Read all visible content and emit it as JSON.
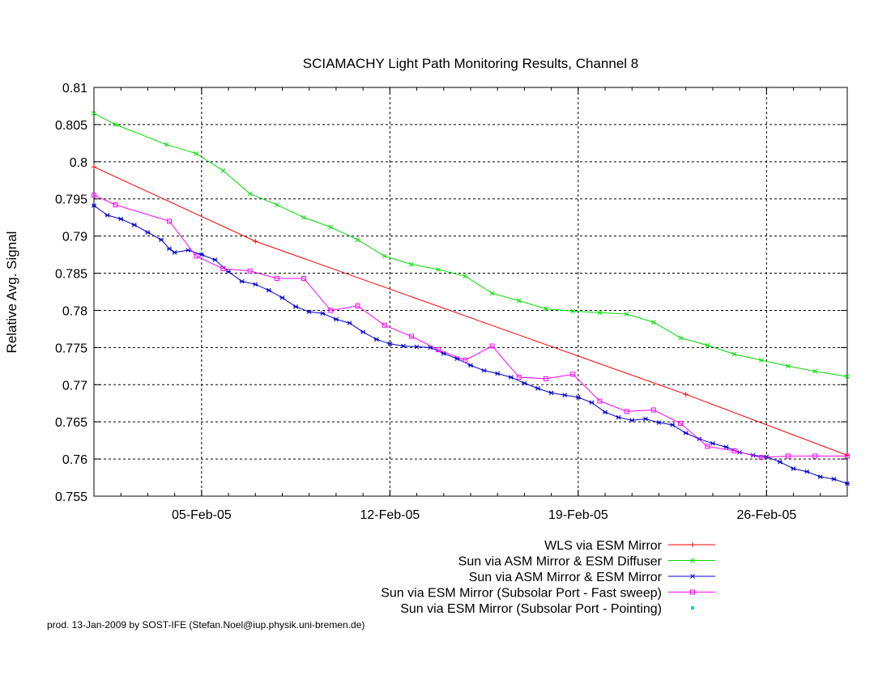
{
  "chart_data": {
    "type": "line",
    "title": "SCIAMACHY Light Path Monitoring Results, Channel 8",
    "xlabel": "",
    "ylabel": "Relative Avg. Signal",
    "x_type": "date",
    "xlim": [
      "2005-02-01",
      "2005-03-01"
    ],
    "ylim": [
      0.755,
      0.81
    ],
    "x_ticks": [
      {
        "value": "2005-02-05",
        "label": "05-Feb-05"
      },
      {
        "value": "2005-02-12",
        "label": "12-Feb-05"
      },
      {
        "value": "2005-02-19",
        "label": "19-Feb-05"
      },
      {
        "value": "2005-02-26",
        "label": "26-Feb-05"
      }
    ],
    "y_ticks": [
      0.755,
      0.76,
      0.765,
      0.77,
      0.775,
      0.78,
      0.785,
      0.79,
      0.795,
      0.8,
      0.805,
      0.81
    ],
    "y_tick_labels": [
      "0.755",
      "0.76",
      "0.765",
      "0.77",
      "0.775",
      "0.78",
      "0.785",
      "0.79",
      "0.795",
      "0.8",
      "0.805",
      "0.81"
    ],
    "grid": true,
    "legend_position": "below-right",
    "series": [
      {
        "name": "WLS via ESM Mirror",
        "color": "#ff0000",
        "marker": "plus",
        "x": [
          "2005-02-01",
          "2005-02-07",
          "2005-02-23",
          "2005-03-01"
        ],
        "y": [
          0.7993,
          0.7893,
          0.7687,
          0.7605
        ]
      },
      {
        "name": "Sun via ASM Mirror & ESM Diffuser",
        "color": "#00dd00",
        "marker": "x",
        "x": [
          "2005-02-01",
          "2005-02-01.8",
          "2005-02-03.7",
          "2005-02-04.8",
          "2005-02-05.8",
          "2005-02-06.8",
          "2005-02-07.8",
          "2005-02-08.8",
          "2005-02-09.8",
          "2005-02-10.8",
          "2005-02-11.8",
          "2005-02-12.8",
          "2005-02-13.8",
          "2005-02-14.8",
          "2005-02-15.8",
          "2005-02-16.8",
          "2005-02-17.8",
          "2005-02-18.8",
          "2005-02-19.8",
          "2005-02-20.8",
          "2005-02-21.8",
          "2005-02-22.8",
          "2005-02-23.8",
          "2005-02-24.8",
          "2005-02-25.8",
          "2005-02-26.8",
          "2005-02-27.8",
          "2005-03-01"
        ],
        "y": [
          0.8065,
          0.805,
          0.8023,
          0.8011,
          0.7988,
          0.7957,
          0.7942,
          0.7925,
          0.7912,
          0.7895,
          0.7873,
          0.7862,
          0.7855,
          0.7846,
          0.7823,
          0.7813,
          0.7802,
          0.7799,
          0.7797,
          0.7795,
          0.7784,
          0.7763,
          0.7753,
          0.7741,
          0.7733,
          0.7725,
          0.7718,
          0.7711
        ]
      },
      {
        "name": "Sun via ASM Mirror & ESM Mirror",
        "color": "#0000cc",
        "marker": "star",
        "x": [
          "2005-02-01",
          "2005-02-01.5",
          "2005-02-02",
          "2005-02-02.5",
          "2005-02-03",
          "2005-02-03.5",
          "2005-02-03.8",
          "2005-02-04",
          "2005-02-04.5",
          "2005-02-05",
          "2005-02-05.5",
          "2005-02-06",
          "2005-02-06.5",
          "2005-02-07",
          "2005-02-07.5",
          "2005-02-08",
          "2005-02-08.5",
          "2005-02-09",
          "2005-02-09.5",
          "2005-02-10",
          "2005-02-10.5",
          "2005-02-11",
          "2005-02-11.5",
          "2005-02-12",
          "2005-02-12.5",
          "2005-02-13",
          "2005-02-13.5",
          "2005-02-14",
          "2005-02-14.5",
          "2005-02-15",
          "2005-02-15.5",
          "2005-02-16",
          "2005-02-16.5",
          "2005-02-17",
          "2005-02-17.5",
          "2005-02-18",
          "2005-02-18.5",
          "2005-02-19",
          "2005-02-19.5",
          "2005-02-20",
          "2005-02-20.5",
          "2005-02-21",
          "2005-02-21.5",
          "2005-02-22",
          "2005-02-22.5",
          "2005-02-23",
          "2005-02-23.5",
          "2005-02-24",
          "2005-02-24.5",
          "2005-02-25",
          "2005-02-25.5",
          "2005-02-26",
          "2005-02-26.5",
          "2005-02-27",
          "2005-02-27.5",
          "2005-02-28",
          "2005-02-28.5",
          "2005-03-01"
        ],
        "y": [
          0.7941,
          0.7928,
          0.7923,
          0.7915,
          0.7905,
          0.7895,
          0.7883,
          0.7878,
          0.7881,
          0.7875,
          0.7868,
          0.7852,
          0.7839,
          0.7835,
          0.7827,
          0.7817,
          0.7805,
          0.7798,
          0.7796,
          0.7788,
          0.7783,
          0.7771,
          0.7761,
          0.7755,
          0.7752,
          0.7751,
          0.775,
          0.7742,
          0.7735,
          0.7726,
          0.7719,
          0.7715,
          0.771,
          0.7702,
          0.7695,
          0.7689,
          0.7686,
          0.7683,
          0.7676,
          0.7663,
          0.7656,
          0.7652,
          0.7654,
          0.7649,
          0.7646,
          0.7635,
          0.7627,
          0.7621,
          0.7616,
          0.7609,
          0.7605,
          0.7603,
          0.7596,
          0.7587,
          0.7583,
          0.7576,
          0.7573,
          0.7567
        ]
      },
      {
        "name": "Sun via ESM Mirror (Subsolar Port - Fast sweep)",
        "color": "#ff00ff",
        "marker": "square",
        "x": [
          "2005-02-01",
          "2005-02-01.8",
          "2005-02-03.8",
          "2005-02-04.8",
          "2005-02-05.8",
          "2005-02-06.8",
          "2005-02-07.8",
          "2005-02-08.8",
          "2005-02-09.8",
          "2005-02-10.8",
          "2005-02-11.8",
          "2005-02-12.8",
          "2005-02-13.8",
          "2005-02-14.8",
          "2005-02-15.8",
          "2005-02-16.8",
          "2005-02-17.8",
          "2005-02-18.8",
          "2005-02-19.8",
          "2005-02-20.8",
          "2005-02-21.8",
          "2005-02-22.8",
          "2005-02-23.8",
          "2005-02-24.8",
          "2005-02-25.8",
          "2005-02-26.8",
          "2005-02-27.8",
          "2005-03-01"
        ],
        "y": [
          0.7955,
          0.7942,
          0.792,
          0.7873,
          0.7856,
          0.7853,
          0.7843,
          0.7843,
          0.78,
          0.7806,
          0.778,
          0.7765,
          0.7747,
          0.7733,
          0.7752,
          0.771,
          0.7708,
          0.7714,
          0.7678,
          0.7664,
          0.7666,
          0.7648,
          0.7617,
          0.7611,
          0.7602,
          0.7604,
          0.7604,
          0.7604
        ]
      },
      {
        "name": "Sun via ESM Mirror (Subsolar Port - Pointing)",
        "color": "#00ccee",
        "marker": "dot",
        "x": [],
        "y": []
      }
    ]
  },
  "credit": "prod. 13-Jan-2009 by SOST-IFE (Stefan.Noel@iup.physik.uni-bremen.de)"
}
